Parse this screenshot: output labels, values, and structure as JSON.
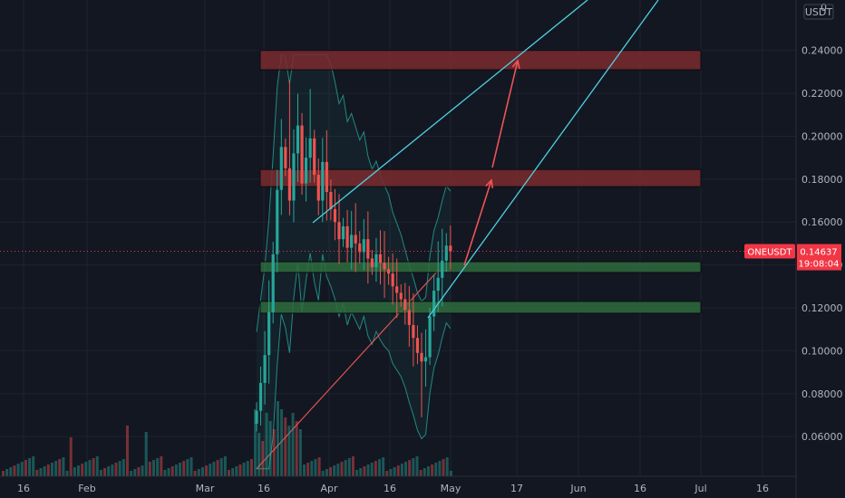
{
  "chart_data": {
    "type": "candlestick",
    "symbol": "ONEUSDT",
    "currency_label": "USDT",
    "last_price": "0.14637",
    "countdown": "19:08:04",
    "y_ticks": [
      "0.24000",
      "0.22000",
      "0.20000",
      "0.18000",
      "0.16000",
      "0.14000",
      "0.12000",
      "0.10000",
      "0.08000",
      "0.06000"
    ],
    "y_tick_values": [
      0.24,
      0.22,
      0.2,
      0.18,
      0.16,
      0.14,
      0.12,
      0.1,
      0.08,
      0.06
    ],
    "y_top_label": "0",
    "ylim": [
      0.0415,
      0.2635
    ],
    "x_ticks": [
      "16",
      "Feb",
      "Mar",
      "16",
      "Apr",
      "16",
      "May",
      "17",
      "Jun",
      "16",
      "Jul",
      "16"
    ],
    "zones": [
      {
        "kind": "resistance",
        "low": 0.231,
        "high": 0.24
      },
      {
        "kind": "resistance",
        "low": 0.1765,
        "high": 0.1845
      },
      {
        "kind": "support",
        "low": 0.1365,
        "high": 0.1415
      },
      {
        "kind": "support",
        "low": 0.1175,
        "high": 0.123
      }
    ],
    "colors": {
      "background": "#131722",
      "grid": "#1f2330",
      "up": "#26a69a",
      "down": "#ef5350",
      "trendline": "#4dd0e1",
      "arrow": "#f05454",
      "resistance_zone": "#7a2a2e",
      "support_zone": "#2e6b3c",
      "ma": "#e0524f",
      "band": "#26a69a",
      "price_badge": "#f23645"
    }
  }
}
